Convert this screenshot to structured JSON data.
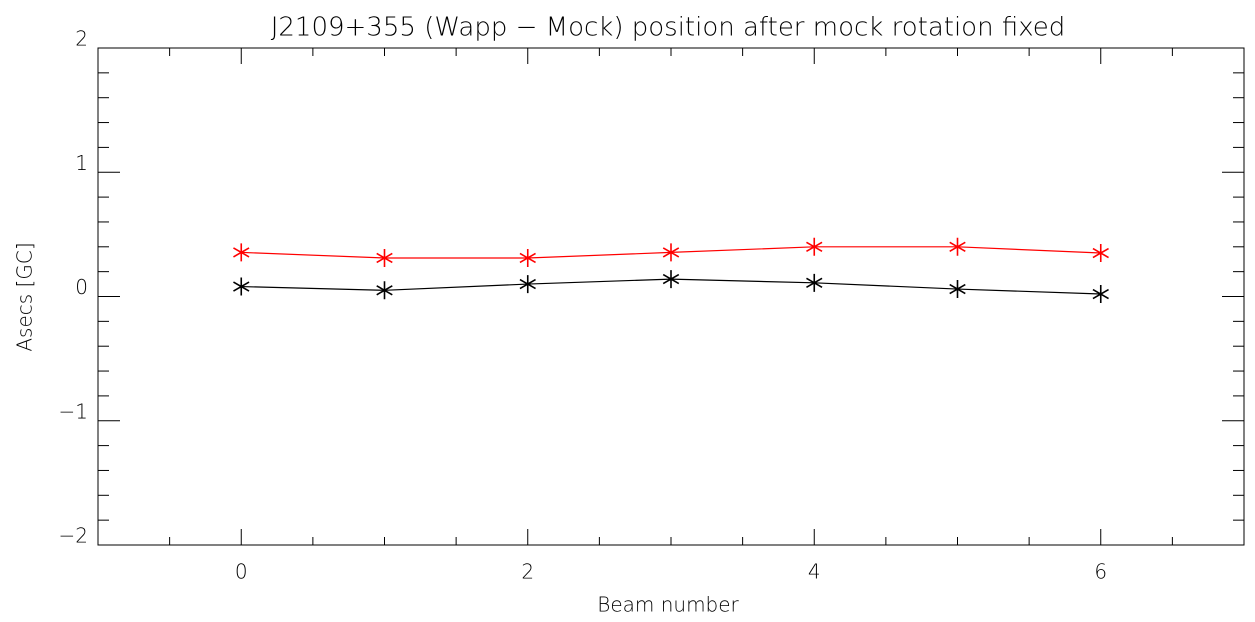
{
  "chart_data": {
    "type": "line",
    "title": "J2109+355 (Wapp − Mock) position after mock rotation fixed",
    "x_label": "Beam number",
    "y_label": "Asecs [GC]",
    "x": [
      0,
      1,
      2,
      3,
      4,
      5,
      6
    ],
    "series": [
      {
        "color": "#ff0000",
        "values": [
          0.355,
          0.31,
          0.31,
          0.355,
          0.4,
          0.4,
          0.35
        ]
      },
      {
        "color": "#000000",
        "values": [
          0.08,
          0.05,
          0.1,
          0.14,
          0.11,
          0.06,
          0.02
        ]
      }
    ],
    "xlim": [
      -1,
      7
    ],
    "xticks": [
      0,
      2,
      4,
      6
    ],
    "xticks_minor": [
      -0.5,
      0.5,
      1,
      1.5,
      2.5,
      3,
      3.5,
      4.5,
      5,
      5.5,
      6.5
    ],
    "ylim": [
      -2,
      2
    ],
    "yticks": [
      {
        "value": -2,
        "label": "−2"
      },
      {
        "value": -1,
        "label": "−1"
      },
      0,
      1,
      2
    ],
    "yticks_minor": [
      -1.8,
      -1.6,
      -1.4,
      -1.2,
      -0.8,
      -0.6,
      -0.4,
      -0.2,
      0.2,
      0.4,
      0.6,
      0.8,
      1.2,
      1.4,
      1.6,
      1.8
    ],
    "marker": "asterisk"
  }
}
